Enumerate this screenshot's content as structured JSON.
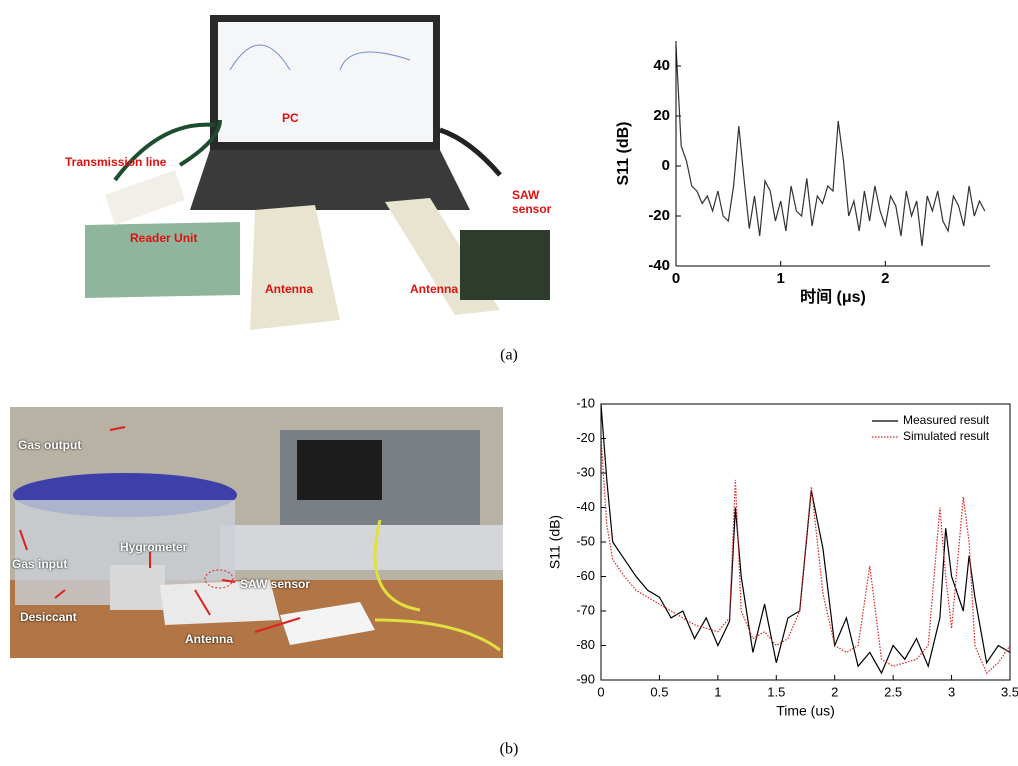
{
  "photos": [
    {
      "labels": [
        "PC",
        "Transmission line",
        "Reader Unit",
        "Antenna",
        "Antenna",
        "SAW sensor"
      ]
    },
    {
      "labels": [
        "Gas output",
        "Gas input",
        "Hygrometer",
        "Desiccant",
        "SAW sensor",
        "Antenna"
      ]
    }
  ],
  "captions": [
    "(a)",
    "(b)"
  ],
  "chart_data": [
    {
      "type": "line",
      "ylabel": "S11 (dB)",
      "xlabel": "时间 (μs)",
      "box": false,
      "xlim": [
        0,
        3
      ],
      "xticks": [
        0,
        1,
        2
      ],
      "ylim": [
        -40,
        50
      ],
      "yticks": [
        -40,
        -20,
        0,
        20,
        40
      ],
      "x": [
        0,
        0.05,
        0.1,
        0.15,
        0.2,
        0.25,
        0.3,
        0.35,
        0.4,
        0.45,
        0.5,
        0.55,
        0.6,
        0.65,
        0.7,
        0.75,
        0.8,
        0.85,
        0.9,
        0.95,
        1,
        1.05,
        1.1,
        1.15,
        1.2,
        1.25,
        1.3,
        1.35,
        1.4,
        1.45,
        1.5,
        1.55,
        1.6,
        1.65,
        1.7,
        1.75,
        1.8,
        1.85,
        1.9,
        1.95,
        2,
        2.05,
        2.1,
        2.15,
        2.2,
        2.25,
        2.3,
        2.35,
        2.4,
        2.45,
        2.5,
        2.55,
        2.6,
        2.65,
        2.7,
        2.75,
        2.8,
        2.85,
        2.9,
        2.95
      ],
      "series": [
        {
          "color": "#333333",
          "style": "solid",
          "values": [
            48,
            8,
            2,
            -8,
            -10,
            -15,
            -12,
            -18,
            -10,
            -20,
            -22,
            -8,
            16,
            -5,
            -25,
            -12,
            -28,
            -6,
            -10,
            -22,
            -14,
            -26,
            -8,
            -18,
            -20,
            -5,
            -24,
            -12,
            -15,
            -8,
            -10,
            18,
            2,
            -20,
            -14,
            -26,
            -10,
            -22,
            -8,
            -18,
            -24,
            -12,
            -16,
            -28,
            -10,
            -20,
            -14,
            -32,
            -12,
            -18,
            -10,
            -22,
            -26,
            -12,
            -16,
            -24,
            -8,
            -20,
            -14,
            -18
          ]
        }
      ]
    },
    {
      "type": "line",
      "ylabel": "S11 (dB)",
      "xlabel": "Time (us)",
      "box": true,
      "legend": "upper right",
      "xlim": [
        0,
        3.5
      ],
      "xticks": [
        0,
        0.5,
        1,
        1.5,
        2,
        2.5,
        3,
        3.5
      ],
      "ylim": [
        -90,
        -10
      ],
      "yticks": [
        -90,
        -80,
        -70,
        -60,
        -50,
        -40,
        -30,
        -20,
        -10
      ],
      "x": [
        0,
        0.05,
        0.1,
        0.2,
        0.3,
        0.4,
        0.5,
        0.6,
        0.7,
        0.8,
        0.9,
        1,
        1.1,
        1.15,
        1.2,
        1.3,
        1.4,
        1.5,
        1.6,
        1.7,
        1.8,
        1.9,
        2,
        2.1,
        2.2,
        2.3,
        2.4,
        2.5,
        2.6,
        2.7,
        2.8,
        2.9,
        2.95,
        3,
        3.1,
        3.15,
        3.2,
        3.3,
        3.4,
        3.5
      ],
      "series": [
        {
          "name": "Measured result",
          "color": "#000000",
          "style": "solid",
          "values": [
            -10,
            -32,
            -50,
            -55,
            -60,
            -64,
            -66,
            -72,
            -70,
            -78,
            -72,
            -80,
            -73,
            -40,
            -60,
            -82,
            -68,
            -85,
            -72,
            -70,
            -35,
            -52,
            -80,
            -72,
            -86,
            -82,
            -88,
            -80,
            -84,
            -78,
            -86,
            -72,
            -46,
            -60,
            -70,
            -54,
            -66,
            -85,
            -80,
            -82
          ]
        },
        {
          "name": "Simulated result",
          "color": "#e02020",
          "style": "dotted",
          "values": [
            -20,
            -45,
            -55,
            -60,
            -64,
            -66,
            -68,
            -70,
            -72,
            -74,
            -75,
            -76,
            -72,
            -32,
            -70,
            -78,
            -76,
            -80,
            -78,
            -70,
            -34,
            -65,
            -80,
            -82,
            -80,
            -57,
            -84,
            -86,
            -85,
            -84,
            -80,
            -40,
            -60,
            -75,
            -37,
            -50,
            -80,
            -88,
            -85,
            -80
          ]
        }
      ]
    }
  ]
}
